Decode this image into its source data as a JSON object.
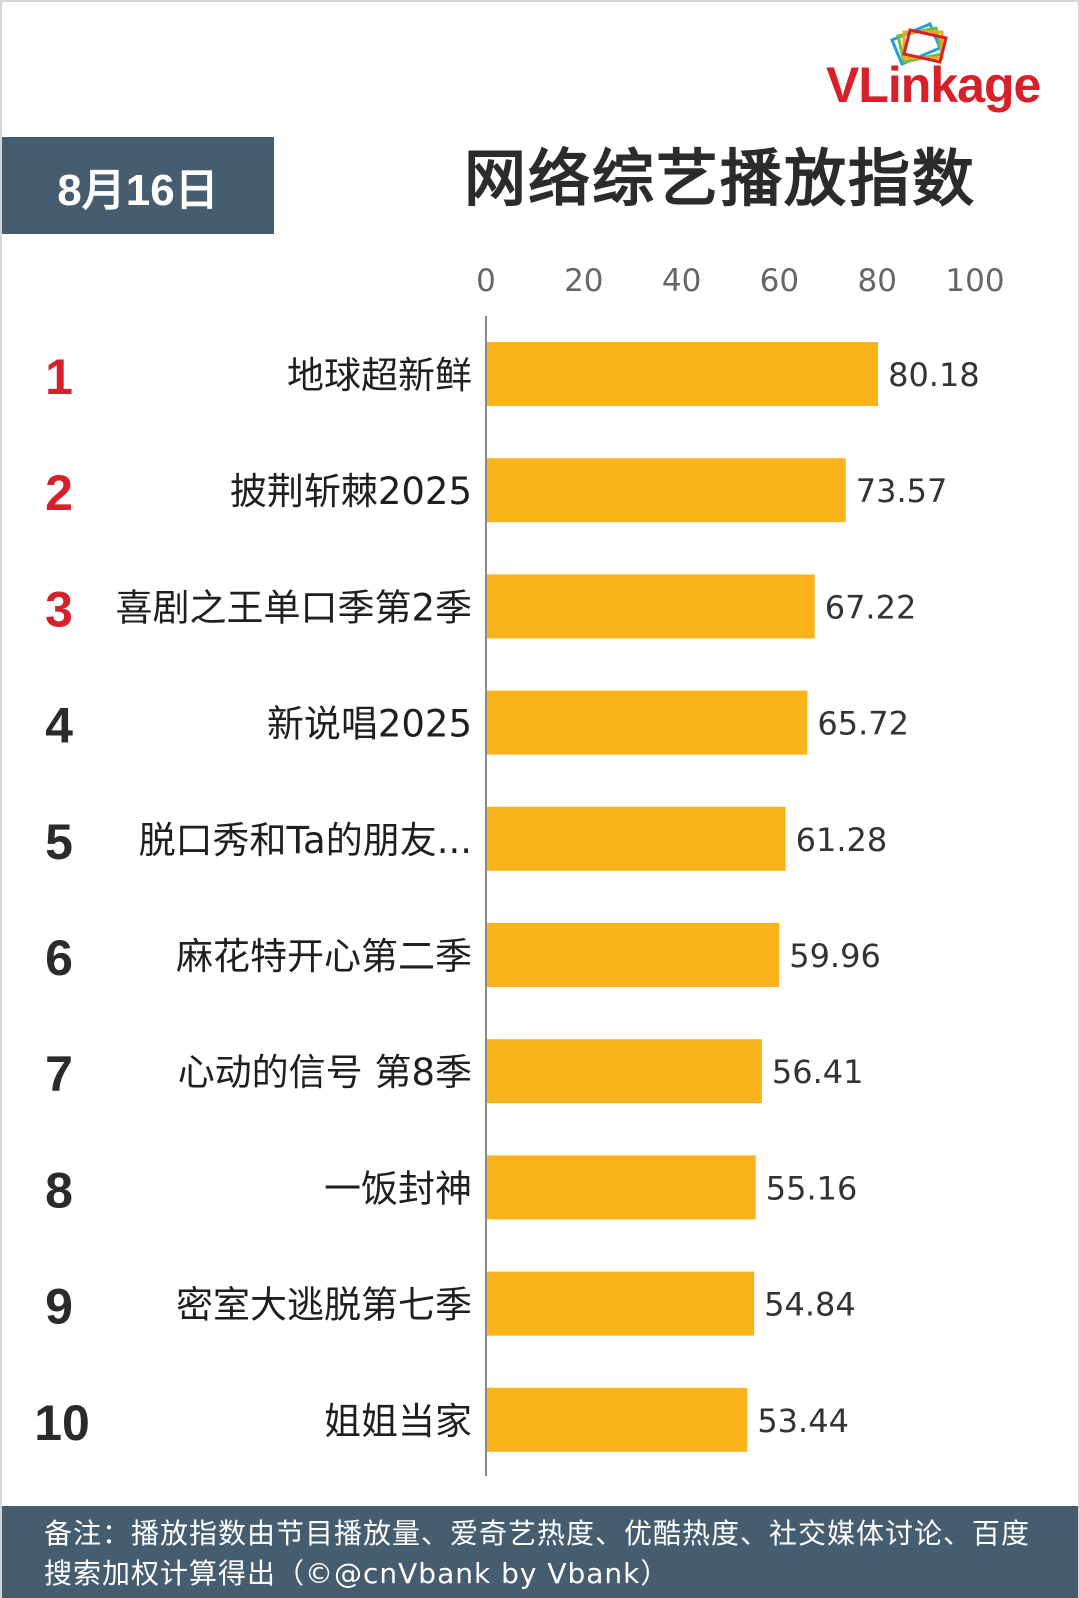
{
  "brand": {
    "logo_text_v": "V",
    "logo_text_rest": "Linkage"
  },
  "date": "8月16日",
  "title": "网络综艺播放指数",
  "footnote": "备注：播放指数由节目播放量、爱奇艺热度、优酷热度、社交媒体讨论、百度搜索加权计算得出（©@cnVbank by Vbank）",
  "colors": {
    "bar": "#fbb31b",
    "header_bg": "#465d70",
    "rank_top": "#d6202a",
    "rank": "#2b2b2b",
    "axis": "#888888"
  },
  "chart_data": {
    "type": "bar",
    "orientation": "horizontal",
    "title": "网络综艺播放指数",
    "xlim": [
      0,
      100
    ],
    "ticks": [
      "0",
      "20",
      "40",
      "60",
      "80",
      "100"
    ],
    "ranks": [
      "1",
      "2",
      "3",
      "4",
      "5",
      "6",
      "7",
      "8",
      "9",
      "10"
    ],
    "categories": [
      "地球超新鲜",
      "披荆斩棘2025",
      "喜剧之王单口季第2季",
      "新说唱2025",
      "脱口秀和Ta的朋友...",
      "麻花特开心第二季",
      "心动的信号 第8季",
      "一饭封神",
      "密室大逃脱第七季",
      "姐姐当家"
    ],
    "values": [
      80.18,
      73.57,
      67.22,
      65.72,
      61.28,
      59.96,
      56.41,
      55.16,
      54.84,
      53.44
    ],
    "value_labels": [
      "80.18",
      "73.57",
      "67.22",
      "65.72",
      "61.28",
      "59.96",
      "56.41",
      "55.16",
      "54.84",
      "53.44"
    ]
  }
}
